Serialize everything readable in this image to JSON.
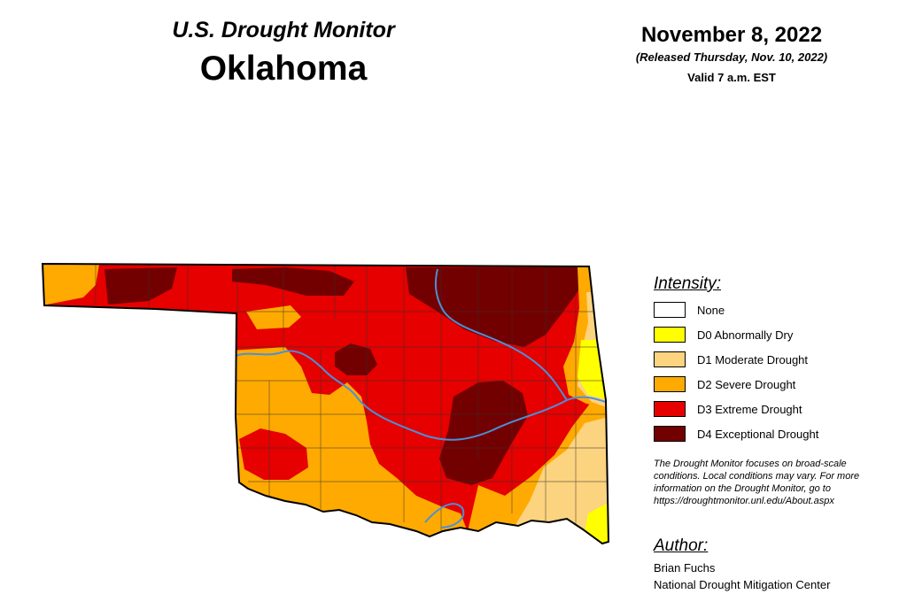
{
  "header": {
    "title": "U.S. Drought Monitor",
    "state": "Oklahoma"
  },
  "dates": {
    "map_date": "November 8, 2022",
    "released": "(Released Thursday, Nov. 10, 2022)",
    "valid": "Valid 7 a.m. EST"
  },
  "legend": {
    "title": "Intensity:",
    "items": [
      {
        "label": "None",
        "color": "#ffffff"
      },
      {
        "label": "D0 Abnormally Dry",
        "color": "#ffff00"
      },
      {
        "label": "D1 Moderate Drought",
        "color": "#fcd37f"
      },
      {
        "label": "D2 Severe Drought",
        "color": "#ffaa00"
      },
      {
        "label": "D3 Extreme Drought",
        "color": "#e60000"
      },
      {
        "label": "D4 Exceptional Drought",
        "color": "#730000"
      }
    ]
  },
  "disclaimer": "The Drought Monitor focuses on broad-scale conditions. Local conditions may vary. For more information on the Drought Monitor, go to https://droughtmonitor.unl.edu/About.aspx",
  "author": {
    "heading": "Author:",
    "name": "Brian Fuchs",
    "organization": "National Drought Mitigation Center"
  },
  "map": {
    "river_color": "#4a90d9",
    "border_color": "#000000"
  }
}
